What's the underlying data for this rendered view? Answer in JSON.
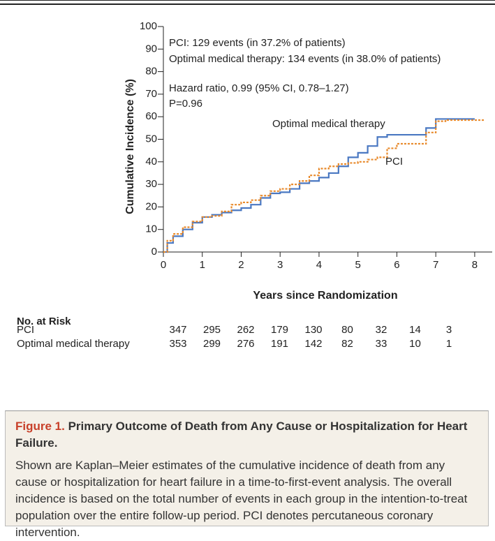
{
  "chart_data": {
    "type": "line",
    "drawstyle": "steps-post",
    "annotations": [
      "PCI: 129 events (in 37.2% of patients)",
      "Optimal medical therapy: 134 events (in 38.0% of patients)",
      "Hazard ratio, 0.99 (95% CI, 0.78–1.27)",
      "P=0.96"
    ],
    "xlabel": "Years since Randomization",
    "ylabel": "Cumulative Incidence (%)",
    "xlim": [
      0,
      8.45
    ],
    "ylim": [
      0,
      100
    ],
    "xticks": [
      0,
      1,
      2,
      3,
      4,
      5,
      6,
      7,
      8
    ],
    "yticks": [
      0,
      10,
      20,
      30,
      40,
      50,
      60,
      70,
      80,
      90,
      100
    ],
    "x": [
      0,
      0.1,
      0.25,
      0.5,
      0.75,
      1,
      1.25,
      1.5,
      1.75,
      2,
      2.25,
      2.5,
      2.75,
      3,
      3.25,
      3.5,
      3.75,
      4,
      4.25,
      4.5,
      4.75,
      5,
      5.25,
      5.5,
      5.75,
      6,
      6.25,
      6.5,
      6.75,
      7,
      7.25,
      7.5,
      7.75,
      8,
      8.25
    ],
    "series": [
      {
        "name": "Optimal medical therapy",
        "color": "#4a78c2",
        "dashed": false,
        "values": [
          0,
          4,
          7,
          10,
          13,
          15.5,
          16.5,
          17.5,
          18.5,
          19.5,
          21,
          24,
          26,
          26.5,
          28,
          30.5,
          31.5,
          33,
          35,
          38,
          42,
          44,
          47,
          51,
          52,
          52,
          52,
          52,
          55,
          59,
          59,
          59,
          59,
          59,
          null
        ]
      },
      {
        "name": "PCI",
        "color": "#e8892a",
        "dashed": true,
        "values": [
          0,
          5,
          8,
          11,
          13.5,
          15.5,
          16,
          18,
          21,
          22,
          23,
          25,
          27,
          28,
          30,
          31.5,
          34,
          37,
          38,
          39,
          39.5,
          40,
          41,
          42,
          46,
          48,
          48,
          48,
          53,
          58,
          58.5,
          58.5,
          58.5,
          58.5,
          58.5
        ]
      }
    ]
  },
  "risk_table": {
    "title": "No. at Risk",
    "rows": [
      {
        "name": "PCI",
        "values": [
          347,
          295,
          262,
          179,
          130,
          80,
          32,
          14,
          3
        ]
      },
      {
        "name": "Optimal medical therapy",
        "values": [
          353,
          299,
          276,
          191,
          142,
          82,
          33,
          10,
          1
        ]
      }
    ]
  },
  "caption": {
    "label": "Figure 1.",
    "title": "Primary Outcome of Death from Any Cause or Hospitalization for Heart Failure.",
    "text": "Shown are Kaplan–Meier estimates of the cumulative incidence of death from any cause or hospitalization for heart failure in a time-to-first-event analysis. The overall incidence is based on the total number of events in each group in the intention-to-treat population over the entire follow-up period. PCI denotes percutaneous coronary intervention."
  }
}
